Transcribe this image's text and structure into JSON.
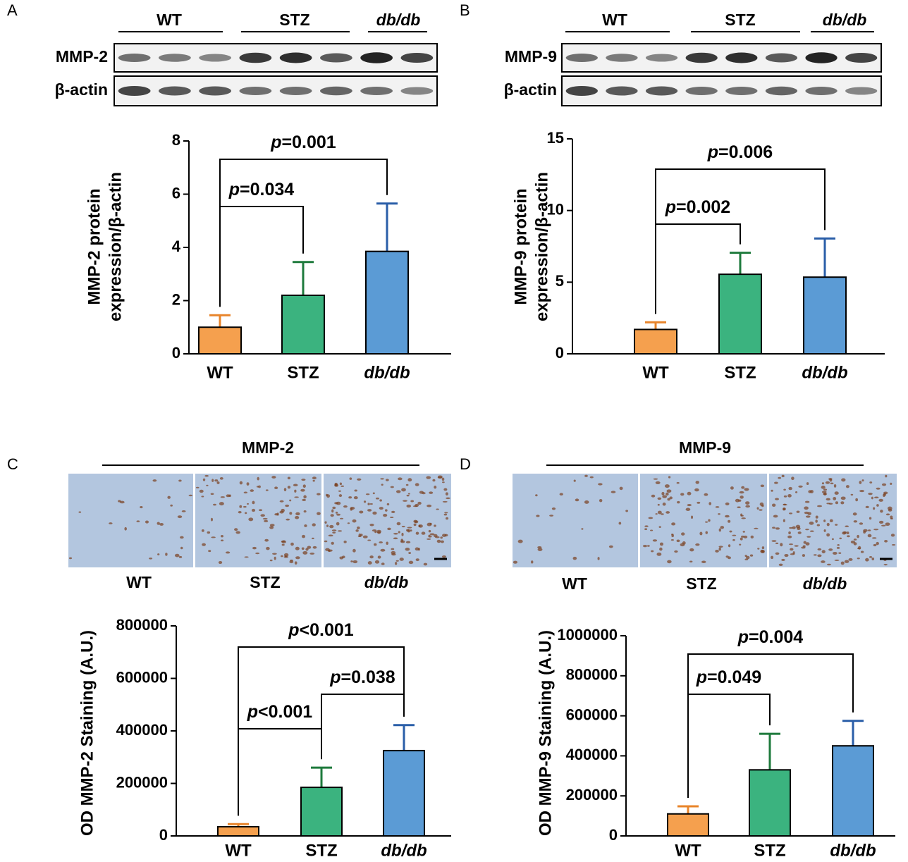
{
  "chart_data": [
    {
      "type": "bar",
      "panel": "A",
      "blot": {
        "groups": [
          "WT",
          "STZ",
          "db/db"
        ],
        "rows": [
          "MMP-2",
          "β-actin"
        ]
      },
      "ylabel": [
        "MMP-2 protein",
        "expression/β-actin"
      ],
      "categories": [
        "WT",
        "STZ",
        "db/db"
      ],
      "values": [
        1.0,
        2.2,
        3.85
      ],
      "errors": [
        0.45,
        1.25,
        1.8
      ],
      "colors": [
        "#f5a04e",
        "#3bb37f",
        "#5b9bd5"
      ],
      "error_colors": [
        "#e8842a",
        "#1e7a3c",
        "#2a5ea8"
      ],
      "ylim": [
        0,
        8
      ],
      "yticks": [
        0,
        2,
        4,
        6,
        8
      ],
      "comparisons": [
        {
          "label": "p=0.034",
          "pair": [
            0,
            1
          ]
        },
        {
          "label": "p=0.001",
          "pair": [
            0,
            2
          ]
        }
      ]
    },
    {
      "type": "bar",
      "panel": "B",
      "blot": {
        "groups": [
          "WT",
          "STZ",
          "db/db"
        ],
        "rows": [
          "MMP-9",
          "β-actin"
        ]
      },
      "ylabel": [
        "MMP-9 protein",
        "expression/β-actin"
      ],
      "categories": [
        "WT",
        "STZ",
        "db/db"
      ],
      "values": [
        1.7,
        5.55,
        5.35
      ],
      "errors": [
        0.5,
        1.5,
        2.7
      ],
      "colors": [
        "#f5a04e",
        "#3bb37f",
        "#5b9bd5"
      ],
      "error_colors": [
        "#e8842a",
        "#1e7a3c",
        "#2a5ea8"
      ],
      "ylim": [
        0,
        15
      ],
      "yticks": [
        0,
        5,
        10,
        15
      ],
      "comparisons": [
        {
          "label": "p=0.002",
          "pair": [
            0,
            1
          ]
        },
        {
          "label": "p=0.006",
          "pair": [
            0,
            2
          ]
        }
      ]
    },
    {
      "type": "bar",
      "panel": "C",
      "staining": {
        "title": "MMP-2",
        "groups": [
          "WT",
          "STZ",
          "db/db"
        ]
      },
      "ylabel": "OD MMP-2 Staining (A.U.)",
      "categories": [
        "WT",
        "STZ",
        "db/db"
      ],
      "values": [
        35000,
        185000,
        325000
      ],
      "errors": [
        10000,
        75000,
        97000
      ],
      "colors": [
        "#f5a04e",
        "#3bb37f",
        "#5b9bd5"
      ],
      "error_colors": [
        "#e8842a",
        "#1e7a3c",
        "#2a5ea8"
      ],
      "ylim": [
        0,
        800000
      ],
      "yticks": [
        0,
        200000,
        400000,
        600000,
        800000
      ],
      "comparisons": [
        {
          "label": "p<0.001",
          "pair": [
            0,
            1
          ]
        },
        {
          "label": "p=0.038",
          "pair": [
            1,
            2
          ]
        },
        {
          "label": "p<0.001",
          "pair": [
            0,
            2
          ]
        }
      ]
    },
    {
      "type": "bar",
      "panel": "D",
      "staining": {
        "title": "MMP-9",
        "groups": [
          "WT",
          "STZ",
          "db/db"
        ]
      },
      "ylabel": "OD MMP-9 Staining (A.U.)",
      "categories": [
        "WT",
        "STZ",
        "db/db"
      ],
      "values": [
        110000,
        330000,
        450000
      ],
      "errors": [
        38000,
        180000,
        125000
      ],
      "colors": [
        "#f5a04e",
        "#3bb37f",
        "#5b9bd5"
      ],
      "error_colors": [
        "#e8842a",
        "#1e7a3c",
        "#2a5ea8"
      ],
      "ylim": [
        0,
        1000000
      ],
      "yticks": [
        0,
        200000,
        400000,
        600000,
        800000,
        1000000
      ],
      "comparisons": [
        {
          "label": "p=0.049",
          "pair": [
            0,
            1
          ]
        },
        {
          "label": "p=0.004",
          "pair": [
            0,
            2
          ]
        }
      ]
    }
  ]
}
